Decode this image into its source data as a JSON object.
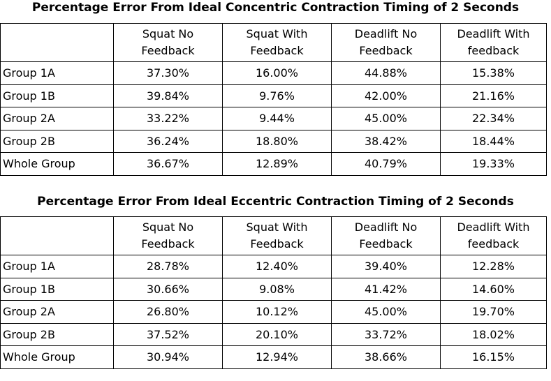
{
  "tables": [
    {
      "title": "Percentage Error From Ideal Concentric Contraction Timing of 2 Seconds",
      "columns": [
        {
          "line1": "Squat No",
          "line2": "Feedback"
        },
        {
          "line1": "Squat With",
          "line2": "Feedback"
        },
        {
          "line1": "Deadlift No",
          "line2": "Feedback"
        },
        {
          "line1": "Deadlift With",
          "line2": "feedback"
        }
      ],
      "rows": [
        {
          "label": "Group 1A",
          "values": [
            "37.30%",
            "16.00%",
            "44.88%",
            "15.38%"
          ]
        },
        {
          "label": "Group 1B",
          "values": [
            "39.84%",
            "9.76%",
            "42.00%",
            "21.16%"
          ]
        },
        {
          "label": "Group 2A",
          "values": [
            "33.22%",
            "9.44%",
            "45.00%",
            "22.34%"
          ]
        },
        {
          "label": "Group 2B",
          "values": [
            "36.24%",
            "18.80%",
            "38.42%",
            "18.44%"
          ]
        },
        {
          "label": "Whole Group",
          "values": [
            "36.67%",
            "12.89%",
            "40.79%",
            "19.33%"
          ]
        }
      ]
    },
    {
      "title": "Percentage Error From Ideal Eccentric Contraction Timing of 2 Seconds",
      "columns": [
        {
          "line1": "Squat No",
          "line2": "Feedback"
        },
        {
          "line1": "Squat With",
          "line2": "Feedback"
        },
        {
          "line1": "Deadlift No",
          "line2": "Feedback"
        },
        {
          "line1": "Deadlift With",
          "line2": "feedback"
        }
      ],
      "rows": [
        {
          "label": "Group 1A",
          "values": [
            "28.78%",
            "12.40%",
            "39.40%",
            "12.28%"
          ]
        },
        {
          "label": "Group 1B",
          "values": [
            "30.66%",
            "9.08%",
            "41.42%",
            "14.60%"
          ]
        },
        {
          "label": "Group 2A",
          "values": [
            "26.80%",
            "10.12%",
            "45.00%",
            "19.70%"
          ]
        },
        {
          "label": "Group 2B",
          "values": [
            "37.52%",
            "20.10%",
            "33.72%",
            "18.02%"
          ]
        },
        {
          "label": "Whole Group",
          "values": [
            "30.94%",
            "12.94%",
            "38.66%",
            "16.15%"
          ]
        }
      ]
    }
  ]
}
